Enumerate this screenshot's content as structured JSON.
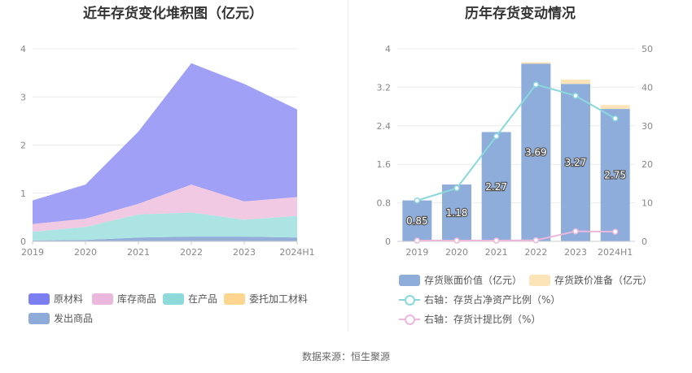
{
  "source": "数据来源：恒生聚源",
  "chart_data": [
    {
      "type": "area",
      "title": "近年存货变化堆积图（亿元）",
      "categories": [
        "2019",
        "2020",
        "2021",
        "2022",
        "2023",
        "2024H1"
      ],
      "ylim": [
        0,
        4
      ],
      "yticks": [
        "0",
        "1",
        "2",
        "3",
        "4"
      ],
      "stacked": true,
      "series": [
        {
          "name": "发出商品",
          "color": "#8eaad8",
          "values": [
            0.02,
            0.03,
            0.08,
            0.1,
            0.1,
            0.08
          ]
        },
        {
          "name": "在产品",
          "color": "#a8e3e3",
          "values": [
            0.18,
            0.27,
            0.48,
            0.5,
            0.35,
            0.45
          ]
        },
        {
          "name": "委托加工材料",
          "color": "#ffd996",
          "values": [
            0.0,
            0.0,
            0.0,
            0.0,
            0.0,
            0.0
          ]
        },
        {
          "name": "库存商品",
          "color": "#f0c6e2",
          "values": [
            0.16,
            0.17,
            0.22,
            0.58,
            0.38,
            0.39
          ]
        },
        {
          "name": "原材料",
          "color": "#9a9bf6",
          "values": [
            0.49,
            0.71,
            1.5,
            2.52,
            2.44,
            1.82
          ]
        }
      ],
      "legend_order": [
        "原材料",
        "库存商品",
        "在产品",
        "委托加工材料",
        "发出商品"
      ],
      "legend_colors": [
        "#7c7ff2",
        "#ebb8dc",
        "#8ed9d9",
        "#ffd68f",
        "#8eaad8"
      ],
      "grid": true,
      "legend": "bottom-left"
    },
    {
      "type": "bar",
      "title": "历年存货变动情况",
      "categories": [
        "2019",
        "2020",
        "2021",
        "2022",
        "2023",
        "2024H1"
      ],
      "ylim": [
        0,
        4
      ],
      "yticks": [
        "0",
        "0.8",
        "1.6",
        "2.4",
        "3.2",
        "4"
      ],
      "y2lim": [
        0,
        50
      ],
      "y2ticks": [
        "0",
        "10",
        "20",
        "30",
        "40",
        "50"
      ],
      "stacked": true,
      "series": [
        {
          "name": "存货账面价值（亿元）",
          "kind": "bar",
          "color": "#8eaddb",
          "values": [
            0.85,
            1.18,
            2.27,
            3.69,
            3.27,
            2.75
          ],
          "labels": [
            "0.85",
            "1.18",
            "2.27",
            "3.69",
            "3.27",
            "2.75"
          ]
        },
        {
          "name": "存货跌价准备（亿元）",
          "kind": "bar",
          "color": "#fce3b8",
          "values": [
            0.0,
            0.0,
            0.0,
            0.03,
            0.09,
            0.08
          ]
        },
        {
          "name": "右轴：存货占净资产比例（%）",
          "kind": "line",
          "axis": "right",
          "color": "#8ad8dc",
          "values": [
            10.6,
            13.8,
            27.3,
            40.7,
            37.8,
            31.9
          ]
        },
        {
          "name": "右轴：存货计提比例（%）",
          "kind": "line",
          "axis": "right",
          "color": "#ebb8dc",
          "values": [
            0.2,
            0.2,
            0.2,
            0.3,
            2.6,
            2.5
          ]
        }
      ],
      "grid": true,
      "legend": "bottom"
    }
  ]
}
